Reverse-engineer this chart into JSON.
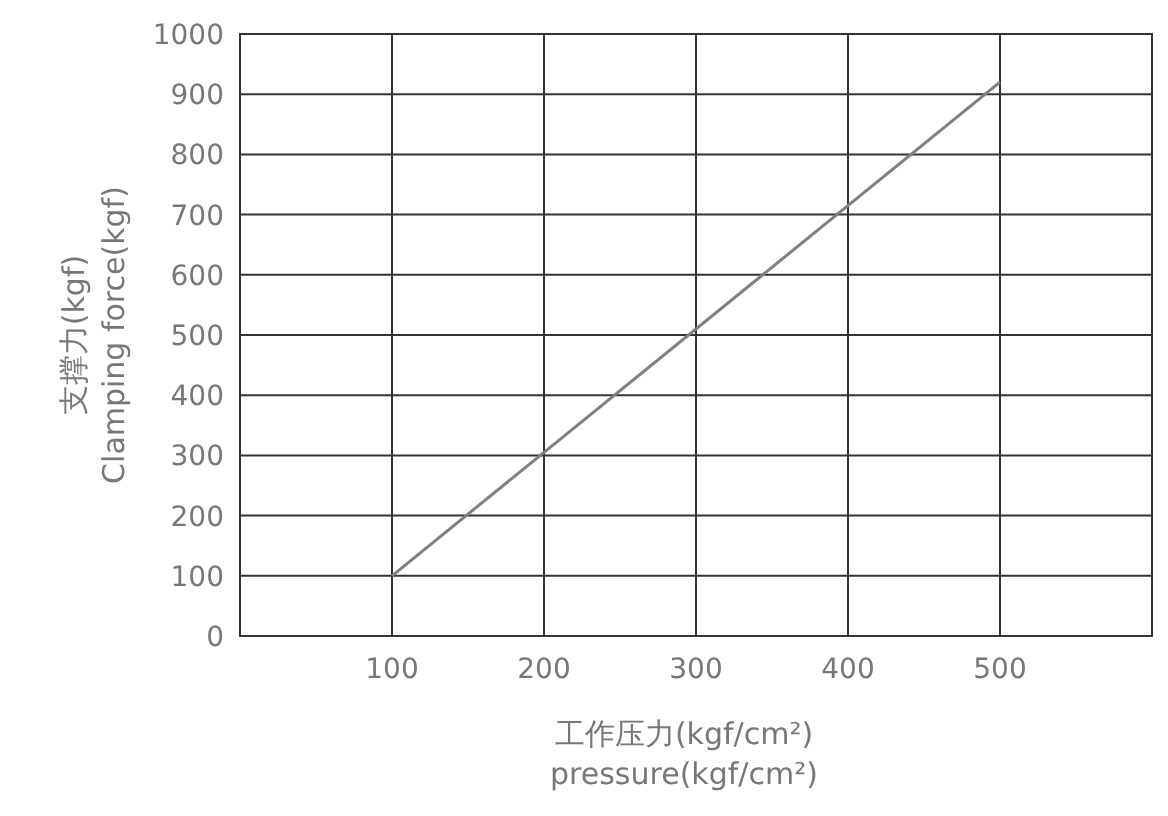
{
  "chart_data": {
    "type": "line",
    "xlabel": "工作压力(kgf/cm²)\npressure(kgf/cm²)",
    "ylabel": "支撑力(kgf)\nClamping force(kgf)",
    "x": [
      100,
      500
    ],
    "series": [
      {
        "color": "#7f7f7f",
        "values": [
          100,
          920
        ]
      }
    ],
    "xlim": [
      0,
      600
    ],
    "xticks": [
      100,
      200,
      300,
      400,
      500
    ],
    "ylim": [
      0,
      1000
    ],
    "yticks": [
      0,
      100,
      200,
      300,
      400,
      500,
      600,
      700,
      800,
      900,
      1000
    ],
    "grid": true,
    "marker": "none",
    "line_style": "solid"
  }
}
